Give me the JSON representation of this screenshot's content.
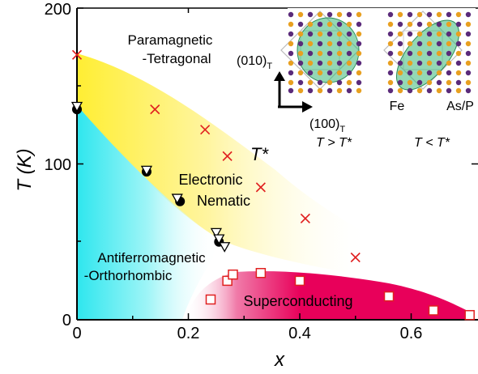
{
  "chart_data": {
    "type": "scatter",
    "xlabel": "x",
    "ylabel": "T (K)",
    "xlim": [
      0,
      0.72
    ],
    "ylim": [
      0,
      200
    ],
    "x_ticks": [
      "0",
      "0.2",
      "0.4",
      "0.6"
    ],
    "x_tick_values": [
      0,
      0.2,
      0.4,
      0.6
    ],
    "y_ticks": [
      "0",
      "100",
      "200"
    ],
    "y_tick_values": [
      0,
      100,
      200
    ],
    "grid": false,
    "regions": {
      "paramagnetic": [
        "Paramagnetic",
        "-Tetragonal"
      ],
      "nematic": [
        "Electronic",
        "Nematic"
      ],
      "afm": [
        "Antiferromagnetic",
        "-Orthorhombic"
      ],
      "sc": "Superconducting",
      "tstar": "T*"
    },
    "colors": {
      "paramagnetic_yellow": "#ffee33",
      "afm_cyan": "#2ee6ee",
      "sc_magenta": "#e8005a",
      "marker_red": "#e02020",
      "inset_fe": "#e8a020",
      "inset_as": "#5a2a7a",
      "inset_ellipse": "#3cb878"
    },
    "series": [
      {
        "marker": "x",
        "x": [
          0.0,
          0.14,
          0.23,
          0.27,
          0.33,
          0.41,
          0.5
        ],
        "y": [
          170,
          135,
          122,
          105,
          85,
          65,
          40
        ]
      },
      {
        "marker": "filled-circle",
        "x": [
          0.0,
          0.125,
          0.185,
          0.255
        ],
        "y": [
          135,
          95,
          76,
          50
        ]
      },
      {
        "marker": "open-triangle-down",
        "x": [
          0.0,
          0.125,
          0.18,
          0.25,
          0.255,
          0.265
        ],
        "y": [
          137,
          96,
          78,
          56,
          52,
          47
        ]
      },
      {
        "marker": "open-square",
        "x": [
          0.24,
          0.27,
          0.28,
          0.33,
          0.4,
          0.56,
          0.64,
          0.705
        ],
        "y": [
          13,
          25,
          29,
          30,
          25,
          15,
          6,
          3
        ]
      }
    ],
    "inset": {
      "axis_y": "(010)",
      "axis_x": "(100)",
      "axis_sub": "T",
      "cond_left": "T > T*",
      "cond_right": "T < T*",
      "atom_fe": "Fe",
      "atom_as": "As/P"
    }
  }
}
